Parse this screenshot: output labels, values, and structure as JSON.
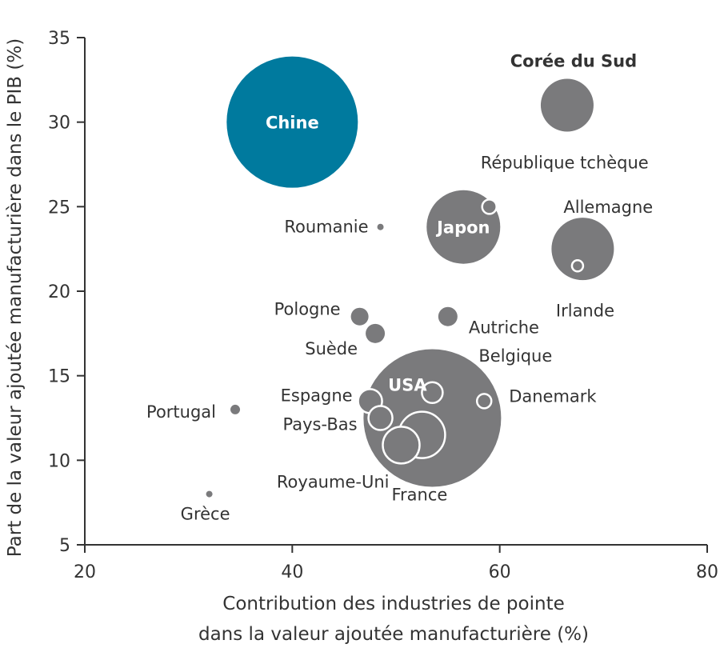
{
  "chart_data": {
    "type": "scatter",
    "title": "",
    "xlabel": [
      "Contribution des industries de pointe",
      "dans la valeur ajoutée manufacturière (%)"
    ],
    "ylabel": "Part de la valeur ajoutée manufacturière dans le PIB (%)",
    "xlim": [
      20,
      80
    ],
    "ylim": [
      5,
      35
    ],
    "xticks": [
      "20",
      "40",
      "60",
      "80"
    ],
    "yticks": [
      "5",
      "10",
      "15",
      "20",
      "25",
      "30",
      "35"
    ],
    "grid": false,
    "bubble_size_shown": true,
    "colors": {
      "highlight": "#007a9e",
      "default": "#7a7a7c",
      "small_outline": "#ffffff",
      "text": "#333333"
    },
    "points": [
      {
        "label": "Chine",
        "x": 40,
        "y": 30,
        "size": 82,
        "highlight": true,
        "label_inside": true,
        "bold": true
      },
      {
        "label": "Corée du Sud",
        "x": 66.5,
        "y": 31,
        "size": 33,
        "bold": true
      },
      {
        "label": "Japon",
        "x": 56.5,
        "y": 23.8,
        "size": 46,
        "label_inside": true,
        "bold": true
      },
      {
        "label": "République tchèque",
        "x": 59,
        "y": 25,
        "size": 9,
        "outlined": true
      },
      {
        "label": "Allemagne",
        "x": 68,
        "y": 22.5,
        "size": 39
      },
      {
        "label": "Irlande",
        "x": 67.5,
        "y": 21.5,
        "size": 7,
        "outlined": true
      },
      {
        "label": "Roumanie",
        "x": 48.5,
        "y": 23.8,
        "size": 4
      },
      {
        "label": "Pologne",
        "x": 46.5,
        "y": 18.5,
        "size": 11
      },
      {
        "label": "Autriche",
        "x": 55,
        "y": 18.5,
        "size": 12
      },
      {
        "label": "Suède",
        "x": 48,
        "y": 17.5,
        "size": 12
      },
      {
        "label": "USA",
        "x": 53.5,
        "y": 12.5,
        "size": 86,
        "label_inside": true,
        "bold": true
      },
      {
        "label": "Belgique",
        "x": 53.5,
        "y": 14,
        "size": 13,
        "outlined": true
      },
      {
        "label": "Danemark",
        "x": 58.5,
        "y": 13.5,
        "size": 9,
        "outlined": true
      },
      {
        "label": "Espagne",
        "x": 47.5,
        "y": 13.5,
        "size": 15,
        "outlined": true
      },
      {
        "label": "Pays-Bas",
        "x": 48.5,
        "y": 12.5,
        "size": 15,
        "outlined": true
      },
      {
        "label": "France",
        "x": 52.5,
        "y": 11.5,
        "size": 29,
        "outlined": true
      },
      {
        "label": "Royaume-Uni",
        "x": 50.5,
        "y": 10.9,
        "size": 23,
        "outlined": true
      },
      {
        "label": "Portugal",
        "x": 34.5,
        "y": 13,
        "size": 6
      },
      {
        "label": "Grèce",
        "x": 32,
        "y": 8,
        "size": 4
      }
    ]
  }
}
